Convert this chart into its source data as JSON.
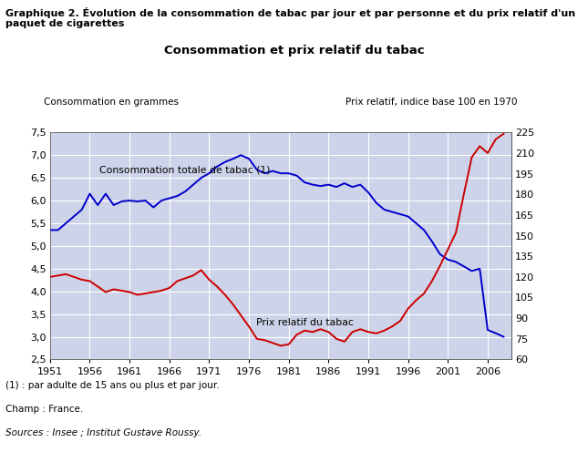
{
  "title_main": "Graphique 2. Évolution de la consommation de tabac par jour et par personne et du prix relatif d'un\npaquet de cigarettes",
  "title_chart": "Consommation et prix relatif du tabac",
  "ylabel_left": "Consommation en grammes",
  "ylabel_right": "Prix relatif, indice base 100 en 1970",
  "footnote1": "(1) : par adulte de 15 ans ou plus et par jour.",
  "footnote2": "Champ : France.",
  "footnote3": "Sources : Insee ; Institut Gustave Roussy.",
  "ylim_left": [
    2.5,
    7.5
  ],
  "ylim_right": [
    60,
    225
  ],
  "yticks_left": [
    2.5,
    3.0,
    3.5,
    4.0,
    4.5,
    5.0,
    5.5,
    6.0,
    6.5,
    7.0,
    7.5
  ],
  "yticks_right": [
    60,
    75,
    90,
    105,
    120,
    135,
    150,
    165,
    180,
    195,
    210,
    225
  ],
  "xticks": [
    1951,
    1956,
    1961,
    1966,
    1971,
    1976,
    1981,
    1986,
    1991,
    1996,
    2001,
    2006
  ],
  "xlim": [
    1951,
    2009
  ],
  "bg_color": "#cdd3e8",
  "fig_bg": "#ffffff",
  "blue_line_color": "#0000cc",
  "red_line_color": "#cc0000",
  "label_blue": "Consommation totale de tabac (1)",
  "label_red": "Prix relatif du tabac",
  "blue_data": [
    [
      1951,
      5.35
    ],
    [
      1952,
      5.35
    ],
    [
      1953,
      5.5
    ],
    [
      1954,
      5.65
    ],
    [
      1955,
      5.8
    ],
    [
      1956,
      6.15
    ],
    [
      1957,
      5.9
    ],
    [
      1958,
      6.15
    ],
    [
      1959,
      5.9
    ],
    [
      1960,
      5.98
    ],
    [
      1961,
      6.0
    ],
    [
      1962,
      5.98
    ],
    [
      1963,
      6.0
    ],
    [
      1964,
      5.85
    ],
    [
      1965,
      6.0
    ],
    [
      1966,
      6.05
    ],
    [
      1967,
      6.1
    ],
    [
      1968,
      6.2
    ],
    [
      1969,
      6.35
    ],
    [
      1970,
      6.5
    ],
    [
      1971,
      6.6
    ],
    [
      1972,
      6.75
    ],
    [
      1973,
      6.85
    ],
    [
      1974,
      6.92
    ],
    [
      1975,
      7.0
    ],
    [
      1976,
      6.92
    ],
    [
      1977,
      6.68
    ],
    [
      1978,
      6.6
    ],
    [
      1979,
      6.65
    ],
    [
      1980,
      6.6
    ],
    [
      1981,
      6.6
    ],
    [
      1982,
      6.55
    ],
    [
      1983,
      6.4
    ],
    [
      1984,
      6.35
    ],
    [
      1985,
      6.32
    ],
    [
      1986,
      6.35
    ],
    [
      1987,
      6.3
    ],
    [
      1988,
      6.38
    ],
    [
      1989,
      6.3
    ],
    [
      1990,
      6.35
    ],
    [
      1991,
      6.18
    ],
    [
      1992,
      5.95
    ],
    [
      1993,
      5.8
    ],
    [
      1994,
      5.75
    ],
    [
      1995,
      5.7
    ],
    [
      1996,
      5.65
    ],
    [
      1997,
      5.5
    ],
    [
      1998,
      5.35
    ],
    [
      1999,
      5.1
    ],
    [
      2000,
      4.82
    ],
    [
      2001,
      4.7
    ],
    [
      2002,
      4.65
    ],
    [
      2003,
      4.55
    ],
    [
      2004,
      4.45
    ],
    [
      2005,
      4.5
    ],
    [
      2006,
      3.15
    ],
    [
      2007,
      3.08
    ],
    [
      2008,
      3.0
    ]
  ],
  "red_data_right": [
    [
      1951,
      120
    ],
    [
      1952,
      121
    ],
    [
      1953,
      122
    ],
    [
      1954,
      120
    ],
    [
      1955,
      118
    ],
    [
      1956,
      117
    ],
    [
      1957,
      113
    ],
    [
      1958,
      109
    ],
    [
      1959,
      111
    ],
    [
      1960,
      110
    ],
    [
      1961,
      109
    ],
    [
      1962,
      107
    ],
    [
      1963,
      108
    ],
    [
      1964,
      109
    ],
    [
      1965,
      110
    ],
    [
      1966,
      112
    ],
    [
      1967,
      117
    ],
    [
      1968,
      119
    ],
    [
      1969,
      121
    ],
    [
      1970,
      125
    ],
    [
      1971,
      118
    ],
    [
      1972,
      113
    ],
    [
      1973,
      107
    ],
    [
      1974,
      100
    ],
    [
      1975,
      92
    ],
    [
      1976,
      84
    ],
    [
      1977,
      75
    ],
    [
      1978,
      74
    ],
    [
      1979,
      72
    ],
    [
      1980,
      70
    ],
    [
      1981,
      71
    ],
    [
      1982,
      78
    ],
    [
      1983,
      81
    ],
    [
      1984,
      80
    ],
    [
      1985,
      82
    ],
    [
      1986,
      80
    ],
    [
      1987,
      75
    ],
    [
      1988,
      73
    ],
    [
      1989,
      80
    ],
    [
      1990,
      82
    ],
    [
      1991,
      80
    ],
    [
      1992,
      79
    ],
    [
      1993,
      81
    ],
    [
      1994,
      84
    ],
    [
      1995,
      88
    ],
    [
      1996,
      97
    ],
    [
      1997,
      103
    ],
    [
      1998,
      108
    ],
    [
      1999,
      117
    ],
    [
      2000,
      128
    ],
    [
      2001,
      140
    ],
    [
      2002,
      152
    ],
    [
      2003,
      180
    ],
    [
      2004,
      207
    ],
    [
      2005,
      215
    ],
    [
      2006,
      210
    ],
    [
      2007,
      220
    ],
    [
      2008,
      224
    ]
  ]
}
